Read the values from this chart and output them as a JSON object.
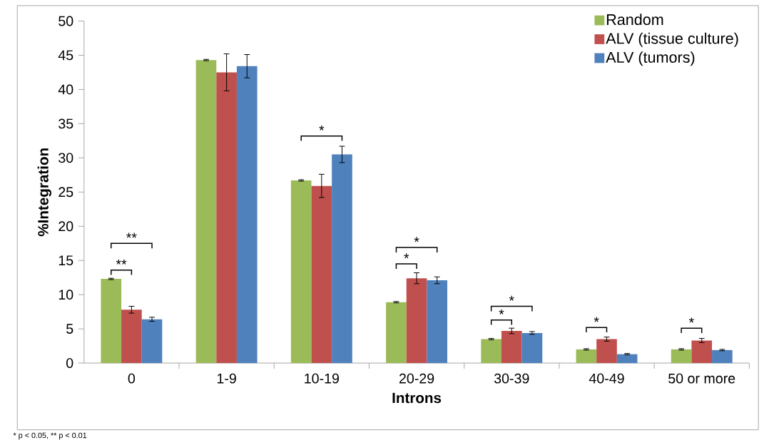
{
  "chart_data": {
    "type": "bar",
    "xlabel": "Introns",
    "ylabel": "%Integration",
    "categories": [
      "0",
      "1-9",
      "10-19",
      "20-29",
      "30-39",
      "40-49",
      "50 or more"
    ],
    "series": [
      {
        "name": "Random",
        "color": "#9bbb59",
        "values": [
          12.3,
          44.3,
          26.7,
          8.9,
          3.5,
          2.0,
          2.0
        ],
        "errors": [
          0.1,
          0.1,
          0.1,
          0.1,
          0.1,
          0.1,
          0.1
        ]
      },
      {
        "name": "ALV (tissue culture)",
        "color": "#c0504d",
        "values": [
          7.8,
          42.5,
          25.9,
          12.4,
          4.7,
          3.5,
          3.3
        ],
        "errors": [
          0.5,
          2.7,
          1.7,
          0.8,
          0.4,
          0.3,
          0.3
        ]
      },
      {
        "name": "ALV (tumors)",
        "color": "#4f81bd",
        "values": [
          6.4,
          43.4,
          30.5,
          12.1,
          4.4,
          1.3,
          1.9
        ],
        "errors": [
          0.3,
          1.7,
          1.2,
          0.5,
          0.2,
          0.1,
          0.1
        ]
      }
    ],
    "ylim": [
      0,
      50
    ],
    "yticks": [
      0,
      5,
      10,
      15,
      20,
      25,
      30,
      35,
      40,
      45,
      50
    ],
    "legend": "top right",
    "grid": false,
    "annotations": [
      "**",
      "**",
      "*",
      "*",
      "*",
      "*",
      "*",
      "*",
      "*",
      "* p < 0.05, ** p < 0.01"
    ]
  }
}
